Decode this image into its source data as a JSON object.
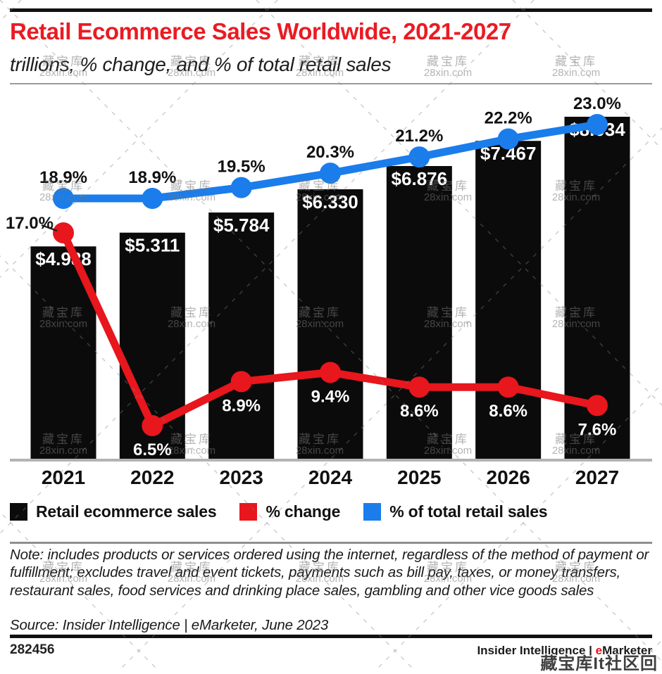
{
  "header": {
    "title": "Retail Ecommerce Sales Worldwide, 2021-2027",
    "subtitle": "trillions, % change, and % of total retail sales",
    "title_color": "#ea1b23"
  },
  "chart_data": {
    "type": "bar",
    "subtype": "combo-bar-and-lines",
    "title": "Retail Ecommerce Sales Worldwide, 2021-2027",
    "xlabel": "",
    "ylabel": "trillions of US dollars / percent",
    "categories": [
      "2021",
      "2022",
      "2023",
      "2024",
      "2025",
      "2026",
      "2027"
    ],
    "series": [
      {
        "name": "Retail ecommerce sales",
        "type": "bar",
        "unit": "$ trillions",
        "color": "#0b0b0b",
        "values": [
          4.988,
          5.311,
          5.784,
          6.33,
          6.876,
          7.467,
          8.034
        ],
        "labels": [
          "$4.988",
          "$5.311",
          "$5.784",
          "$6.330",
          "$6.876",
          "$7.467",
          "$8.034"
        ]
      },
      {
        "name": "% change",
        "type": "line",
        "unit": "%",
        "color": "#e8161d",
        "values": [
          17.0,
          6.5,
          8.9,
          9.4,
          8.6,
          8.6,
          7.6
        ],
        "labels": [
          "17.0%",
          "6.5%",
          "8.9%",
          "9.4%",
          "8.6%",
          "8.6%",
          "7.6%"
        ]
      },
      {
        "name": "% of total retail sales",
        "type": "line",
        "unit": "%",
        "color": "#1a7deb",
        "values": [
          18.9,
          18.9,
          19.5,
          20.3,
          21.2,
          22.2,
          23.0
        ],
        "labels": [
          "18.9%",
          "18.9%",
          "19.5%",
          "20.3%",
          "21.2%",
          "22.2%",
          "23.0%"
        ]
      }
    ],
    "axis": {
      "bar_baseline_value": 0,
      "grid": false,
      "x_axis_line_color": "#b3b3b3"
    },
    "legend_position": "bottom"
  },
  "legend": {
    "items": [
      {
        "label": "Retail ecommerce sales",
        "color": "#0b0b0b"
      },
      {
        "label": "% change",
        "color": "#e8161d"
      },
      {
        "label": "% of total retail sales",
        "color": "#1a7deb"
      }
    ]
  },
  "note": "Note: includes products or services ordered using the internet, regardless of the method of payment or fulfillment; excludes travel and event tickets, payments such as bill pay, taxes, or money transfers, restaurant sales, food services and drinking place sales, gambling and other vice goods sales",
  "source": "Source: Insider Intelligence | eMarketer, June 2023",
  "footer": {
    "chart_id": "282456",
    "brand_prefix": "Insider Intelligence | ",
    "brand_accent": "e",
    "brand_rest": "Marketer"
  },
  "watermark": {
    "line1": "藏宝库",
    "line2": "28xin.com",
    "corner": "藏宝库It社区回"
  }
}
